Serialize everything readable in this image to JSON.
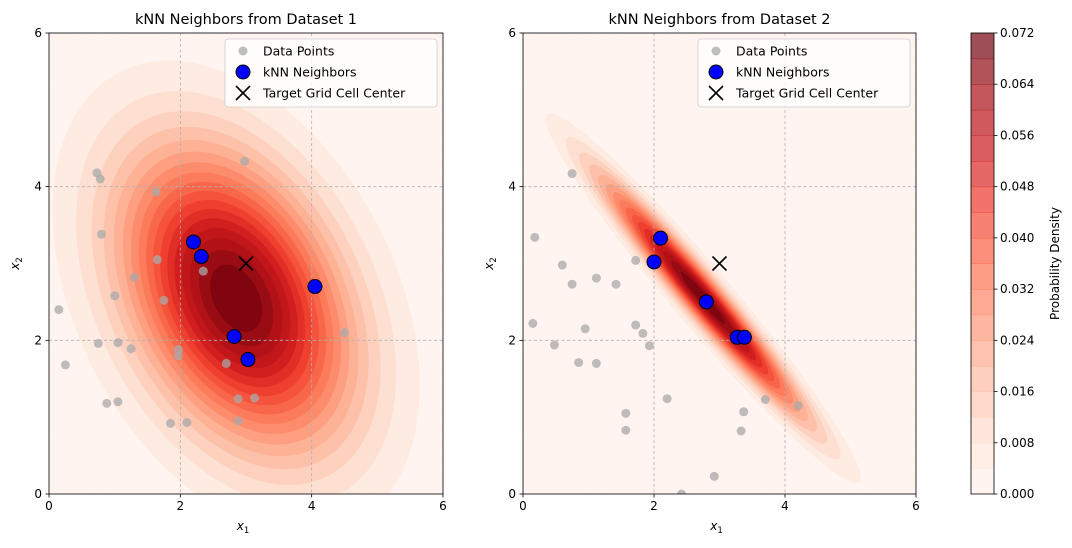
{
  "chart_data": [
    {
      "type": "scatter",
      "title": "kNN Neighbors from Dataset 1",
      "xlabel": "x",
      "xlabel_sub": "1",
      "ylabel": "x",
      "ylabel_sub": "2",
      "xlim": [
        0,
        6
      ],
      "ylim": [
        0,
        6
      ],
      "x_ticks": [
        "0",
        "2",
        "4",
        "6"
      ],
      "y_ticks": [
        "0",
        "2",
        "4",
        "6"
      ],
      "grid": true,
      "legend_position": "top-right",
      "legend": [
        "Data Points",
        "kNN Neighbors",
        "Target Grid Cell Center"
      ],
      "density": {
        "mean": [
          2.85,
          2.55
        ],
        "cov": [
          [
            1.35,
            -0.55
          ],
          [
            -0.55,
            1.65
          ]
        ],
        "peak": 0.072
      },
      "data_points": [
        [
          0.15,
          2.4
        ],
        [
          0.25,
          1.68
        ],
        [
          0.73,
          4.18
        ],
        [
          0.78,
          4.1
        ],
        [
          0.8,
          3.38
        ],
        [
          0.75,
          1.96
        ],
        [
          0.88,
          1.18
        ],
        [
          1.0,
          2.58
        ],
        [
          1.05,
          1.97
        ],
        [
          1.05,
          1.2
        ],
        [
          1.25,
          1.89
        ],
        [
          1.3,
          2.82
        ],
        [
          1.63,
          3.93
        ],
        [
          1.65,
          3.05
        ],
        [
          1.75,
          2.52
        ],
        [
          1.85,
          0.92
        ],
        [
          1.97,
          1.88
        ],
        [
          1.97,
          1.8
        ],
        [
          2.1,
          0.93
        ],
        [
          2.35,
          2.9
        ],
        [
          2.7,
          1.7
        ],
        [
          2.88,
          1.24
        ],
        [
          2.88,
          0.95
        ],
        [
          2.98,
          4.33
        ],
        [
          3.13,
          1.25
        ],
        [
          4.5,
          2.1
        ]
      ],
      "knn_neighbors": [
        [
          2.2,
          3.28
        ],
        [
          2.32,
          3.09
        ],
        [
          2.82,
          2.05
        ],
        [
          3.03,
          1.75
        ],
        [
          4.05,
          2.7
        ]
      ],
      "target": [
        3.0,
        3.0
      ]
    },
    {
      "type": "scatter",
      "title": "kNN Neighbors from Dataset 2",
      "xlabel": "x",
      "xlabel_sub": "1",
      "ylabel": "x",
      "ylabel_sub": "2",
      "xlim": [
        0,
        6
      ],
      "ylim": [
        0,
        6
      ],
      "x_ticks": [
        "0",
        "2",
        "4",
        "6"
      ],
      "y_ticks": [
        "0",
        "2",
        "4",
        "6"
      ],
      "grid": true,
      "legend_position": "top-right",
      "legend": [
        "Data Points",
        "kNN Neighbors",
        "Target Grid Cell Center"
      ],
      "density": {
        "mean": [
          2.75,
          2.55
        ],
        "cov": [
          [
            1.0,
            -0.97
          ],
          [
            -0.97,
            1.0
          ]
        ],
        "peak": 0.072
      },
      "data_points": [
        [
          0.15,
          2.22
        ],
        [
          0.18,
          3.34
        ],
        [
          0.48,
          1.94
        ],
        [
          0.6,
          2.98
        ],
        [
          0.75,
          4.17
        ],
        [
          0.75,
          2.73
        ],
        [
          0.85,
          1.71
        ],
        [
          0.95,
          2.15
        ],
        [
          1.12,
          2.81
        ],
        [
          1.12,
          1.7
        ],
        [
          1.42,
          2.73
        ],
        [
          1.57,
          1.05
        ],
        [
          1.57,
          0.83
        ],
        [
          1.72,
          2.2
        ],
        [
          1.72,
          3.04
        ],
        [
          1.83,
          2.09
        ],
        [
          1.93,
          1.93
        ],
        [
          2.2,
          1.24
        ],
        [
          2.42,
          0.0
        ],
        [
          2.92,
          0.23
        ],
        [
          3.33,
          0.82
        ],
        [
          3.37,
          1.07
        ],
        [
          3.7,
          1.23
        ],
        [
          4.2,
          1.15
        ]
      ],
      "knn_neighbors": [
        [
          2.1,
          3.33
        ],
        [
          2.0,
          3.02
        ],
        [
          2.8,
          2.5
        ],
        [
          3.27,
          2.04
        ],
        [
          3.38,
          2.04
        ]
      ],
      "target": [
        3.0,
        3.0
      ]
    }
  ],
  "colorbar": {
    "label": "Probability Density",
    "ticks": [
      "0.000",
      "0.008",
      "0.016",
      "0.024",
      "0.032",
      "0.040",
      "0.048",
      "0.056",
      "0.064",
      "0.072"
    ],
    "min": 0,
    "max": 0.072,
    "levels": 18
  },
  "colors": {
    "data_points": "#a8a8a8",
    "knn_fill": "#0000ff",
    "knn_edge": "#000000",
    "target": "#000000",
    "grid": "#b0b0b0",
    "cmap_low": "#fff5f0",
    "cmap_mid": "#fb6a4a",
    "cmap_high": "#67000d"
  }
}
